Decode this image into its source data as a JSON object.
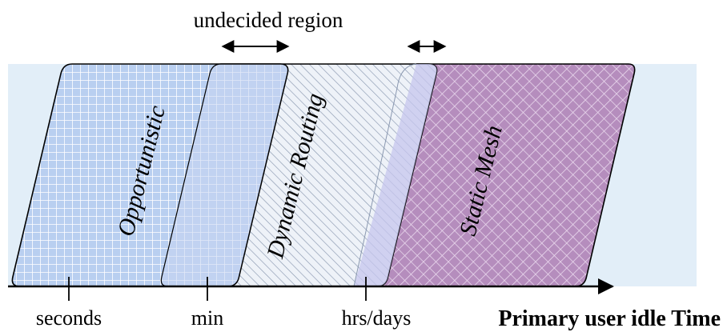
{
  "top_label": "undecided region",
  "regions": [
    {
      "key": "opportunistic",
      "label": "Opportunistic",
      "color": "#4a7fd4",
      "fill": "#b7cdef"
    },
    {
      "key": "dynamic",
      "label": "Dynamic Routing",
      "color": "#5b6f8a",
      "fill": "#e9eef6"
    },
    {
      "key": "static",
      "label": "Static Mesh",
      "color": "#a97bb0",
      "fill": "#b88cc0"
    }
  ],
  "axis": {
    "title": "Primary user idle Time",
    "ticks": [
      "seconds",
      "min",
      "hrs/days"
    ]
  },
  "colors": {
    "axis": "#000000",
    "background_band": "#dbeaf7",
    "overlap": "#c9d3f0"
  }
}
